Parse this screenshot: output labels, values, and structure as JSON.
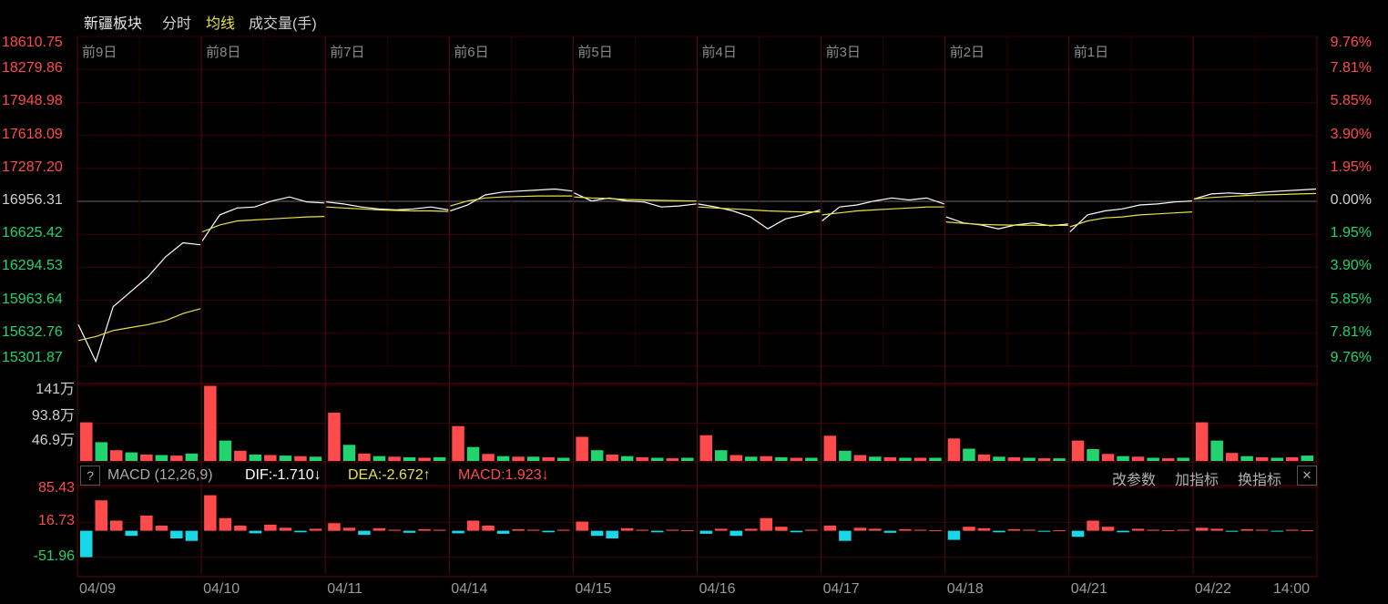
{
  "header": {
    "sector_name": "新疆板块",
    "tab_fenshi": "分时",
    "tab_junxian": "均线",
    "volume_label": "成交量(手)"
  },
  "colors": {
    "up": "#ff4b4b",
    "down": "#22d46f",
    "price_line": "#ffffff",
    "avg_line": "#e8e24a",
    "macd_neg": "#18d8e8",
    "grid": "#3a0000"
  },
  "price_axis": {
    "left": [
      "18610.75",
      "18279.86",
      "17948.98",
      "17618.09",
      "17287.20",
      "16956.31",
      "16625.42",
      "16294.53",
      "15963.64",
      "15632.76",
      "15301.87"
    ],
    "right": [
      "9.76%",
      "7.81%",
      "5.85%",
      "3.90%",
      "1.95%",
      "0.00%",
      "1.95%",
      "3.90%",
      "5.85%",
      "7.81%",
      "9.76%"
    ]
  },
  "day_labels": [
    "前9日",
    "前8日",
    "前7日",
    "前6日",
    "前5日",
    "前4日",
    "前3日",
    "前2日",
    "前1日"
  ],
  "volume_axis": [
    "141万",
    "93.8万",
    "46.9万"
  ],
  "macd_header": {
    "help": "?",
    "name": "MACD (12,26,9)",
    "dif": "DIF:-1.710↓",
    "dea": "DEA:-2.672↑",
    "macd": "MACD:1.923↓",
    "btn_params": "改参数",
    "btn_add": "加指标",
    "btn_switch": "换指标",
    "close": "✕"
  },
  "macd_axis": [
    "85.43",
    "16.73",
    "-51.96"
  ],
  "date_labels": [
    "04/09",
    "04/10",
    "04/11",
    "04/14",
    "04/15",
    "04/16",
    "04/17",
    "04/18",
    "04/21",
    "04/22",
    "14:00"
  ],
  "chart_data": {
    "type": "line",
    "sessions": [
      "04/09",
      "04/10",
      "04/11",
      "04/14",
      "04/15",
      "04/16",
      "04/17",
      "04/18",
      "04/21",
      "04/22"
    ],
    "prev_close": 16956.31,
    "ylim": [
      15301.87,
      18610.75
    ],
    "series": [],
    "session_price": [
      [
        15720,
        15350,
        15900,
        16050,
        16200,
        16400,
        16540,
        16520
      ],
      [
        16560,
        16820,
        16890,
        16900,
        16960,
        17000,
        16950,
        16940
      ],
      [
        16950,
        16930,
        16900,
        16880,
        16870,
        16880,
        16900,
        16870
      ],
      [
        16860,
        16920,
        17020,
        17050,
        17060,
        17070,
        17080,
        17060
      ],
      [
        17040,
        16960,
        16990,
        16960,
        16950,
        16900,
        16910,
        16930
      ],
      [
        16930,
        16900,
        16860,
        16800,
        16680,
        16780,
        16820,
        16870
      ],
      [
        16760,
        16900,
        16920,
        16960,
        16990,
        16970,
        16990,
        16930
      ],
      [
        16800,
        16740,
        16720,
        16680,
        16720,
        16740,
        16710,
        16730
      ],
      [
        16650,
        16820,
        16860,
        16880,
        16920,
        16930,
        16950,
        16960
      ],
      [
        16980,
        17030,
        17040,
        17030,
        17050,
        17060,
        17070,
        17080
      ]
    ],
    "session_avg": [
      [
        15560,
        15600,
        15660,
        15690,
        15720,
        15760,
        15830,
        15880
      ],
      [
        16650,
        16720,
        16760,
        16770,
        16780,
        16790,
        16800,
        16805
      ],
      [
        16900,
        16890,
        16880,
        16870,
        16865,
        16860,
        16860,
        16855
      ],
      [
        16910,
        16960,
        16990,
        17000,
        17005,
        17010,
        17010,
        17010
      ],
      [
        17000,
        16990,
        16985,
        16975,
        16970,
        16965,
        16962,
        16960
      ],
      [
        16900,
        16890,
        16880,
        16870,
        16860,
        16855,
        16850,
        16850
      ],
      [
        16820,
        16840,
        16860,
        16870,
        16880,
        16890,
        16900,
        16900
      ],
      [
        16750,
        16735,
        16725,
        16720,
        16718,
        16716,
        16715,
        16715
      ],
      [
        16700,
        16760,
        16790,
        16800,
        16820,
        16830,
        16840,
        16850
      ],
      [
        16980,
        16995,
        17005,
        17015,
        17020,
        17025,
        17030,
        17035
      ]
    ],
    "volume_ylim": [
      0,
      1410000
    ],
    "session_volume": [
      [
        720000,
        350000,
        200000,
        160000,
        120000,
        110000,
        100000,
        140000
      ],
      [
        1400000,
        380000,
        190000,
        120000,
        110000,
        100000,
        90000,
        80000
      ],
      [
        900000,
        300000,
        140000,
        90000,
        80000,
        70000,
        60000,
        70000
      ],
      [
        650000,
        260000,
        130000,
        90000,
        80000,
        80000,
        70000,
        60000
      ],
      [
        450000,
        200000,
        120000,
        90000,
        70000,
        60000,
        50000,
        60000
      ],
      [
        480000,
        200000,
        110000,
        80000,
        90000,
        70000,
        60000,
        60000
      ],
      [
        470000,
        190000,
        110000,
        80000,
        70000,
        60000,
        60000,
        60000
      ],
      [
        420000,
        230000,
        120000,
        80000,
        70000,
        60000,
        50000,
        50000
      ],
      [
        380000,
        220000,
        130000,
        90000,
        80000,
        60000,
        50000,
        60000
      ],
      [
        720000,
        380000,
        150000,
        90000,
        70000,
        60000,
        70000,
        100000
      ]
    ],
    "macd_ylim": [
      -85,
      85.43
    ],
    "session_macd": [
      [
        -51.96,
        60,
        20,
        -10,
        30,
        10,
        -15,
        -20
      ],
      [
        70,
        25,
        10,
        -5,
        12,
        6,
        -3,
        4
      ],
      [
        15,
        6,
        -8,
        5,
        2,
        -4,
        3,
        2
      ],
      [
        -5,
        20,
        10,
        -6,
        3,
        2,
        -3,
        2
      ],
      [
        18,
        -10,
        -15,
        5,
        2,
        -3,
        2,
        1
      ],
      [
        -6,
        4,
        -10,
        4,
        25,
        8,
        -3,
        2
      ],
      [
        10,
        -20,
        6,
        4,
        -4,
        3,
        2,
        1
      ],
      [
        -18,
        8,
        5,
        -3,
        3,
        2,
        -2,
        1
      ],
      [
        -12,
        20,
        8,
        -3,
        4,
        2,
        1,
        2
      ],
      [
        6,
        4,
        -2,
        3,
        2,
        -1,
        2,
        1
      ]
    ]
  }
}
